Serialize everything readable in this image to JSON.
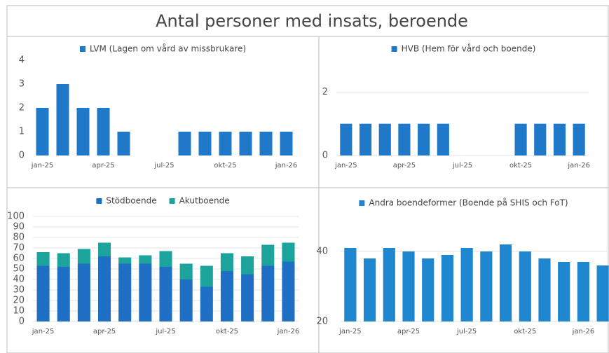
{
  "title": "Antal personer med insats, beroende",
  "chart_data": [
    {
      "type": "bar",
      "categories": [
        "jan-25",
        null,
        null,
        "apr-25",
        null,
        null,
        "jul-25",
        null,
        null,
        "okt-25",
        null,
        null,
        "jan-26"
      ],
      "series": [
        {
          "name": "LVM (Lagen om vård av missbrukare)",
          "color": "#1f78c8",
          "values": [
            2,
            3,
            2,
            2,
            1,
            0,
            0,
            1,
            1,
            1,
            1,
            1,
            1
          ]
        }
      ],
      "ylim": [
        0,
        4
      ],
      "yticks": [
        0,
        1,
        2,
        3,
        4
      ],
      "grid": false,
      "legend": "top"
    },
    {
      "type": "bar",
      "categories": [
        "jan-25",
        null,
        null,
        "apr-25",
        null,
        null,
        "jul-25",
        null,
        null,
        "okt-25",
        null,
        null,
        "jan-26"
      ],
      "series": [
        {
          "name": "HVB (Hem för vård och boende)",
          "color": "#1f78c8",
          "values": [
            1,
            1,
            1,
            1,
            1,
            1,
            0,
            0,
            0,
            1,
            1,
            1,
            1
          ]
        }
      ],
      "ylim": [
        0,
        3
      ],
      "yticks": [
        0,
        2
      ],
      "grid": true,
      "legend": "top"
    },
    {
      "type": "bar",
      "stacked": true,
      "categories": [
        "jan-25",
        null,
        null,
        "apr-25",
        null,
        null,
        "jul-25",
        null,
        null,
        "okt-25",
        null,
        null,
        "jan-26"
      ],
      "series": [
        {
          "name": "Stödboende",
          "color": "#1f6fc5",
          "values": [
            53,
            52,
            55,
            62,
            55,
            55,
            52,
            40,
            33,
            48,
            45,
            53,
            57
          ]
        },
        {
          "name": "Akutboende",
          "color": "#1ba39c",
          "values": [
            13,
            13,
            14,
            13,
            6,
            8,
            15,
            15,
            20,
            17,
            17,
            20,
            18
          ]
        }
      ],
      "ylim": [
        0,
        100
      ],
      "yticks": [
        0,
        10,
        20,
        30,
        40,
        50,
        60,
        70,
        80,
        90,
        100
      ],
      "grid": true,
      "legend": "top"
    },
    {
      "type": "bar",
      "categories": [
        "jan-25",
        null,
        null,
        "apr-25",
        null,
        null,
        "jul-25",
        null,
        null,
        "okt-25",
        null,
        null,
        "jan-26",
        null
      ],
      "series": [
        {
          "name": "Andra boendeformer (Boende på SHIS och FoT)",
          "color": "#1f86d0",
          "values": [
            41,
            38,
            41,
            40,
            38,
            39,
            41,
            40,
            42,
            40,
            38,
            37,
            37,
            36
          ]
        }
      ],
      "ylim": [
        20,
        50
      ],
      "yticks": [
        20,
        40
      ],
      "grid": true,
      "legend": "top"
    }
  ]
}
